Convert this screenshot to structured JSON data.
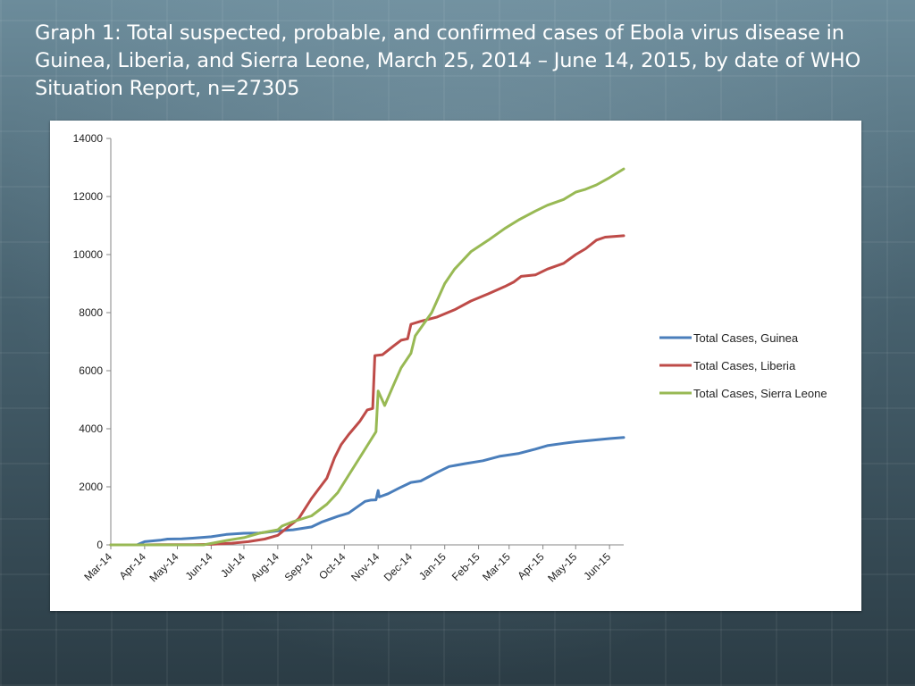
{
  "slide": {
    "title": "Graph 1: Total suspected, probable, and confirmed cases of Ebola virus disease in Guinea, Liberia, and Sierra Leone, March 25, 2014 – June 14, 2015, by date of WHO Situation Report, n=27305"
  },
  "chart_data": {
    "type": "line",
    "title": "Graph 1: Total suspected, probable, and confirmed cases of Ebola virus disease in Guinea, Liberia, and Sierra Leone, March 25, 2014 – June 14, 2015, by date of WHO Situation Report, n=27305",
    "xlabel": "",
    "ylabel": "",
    "x_axis": {
      "type": "date",
      "range": [
        "2014-03-01",
        "2015-06-14"
      ],
      "tick_labels": [
        "Mar-14",
        "Apr-14",
        "May-14",
        "Jun-14",
        "Jul-14",
        "Aug-14",
        "Sep-14",
        "Oct-14",
        "Nov-14",
        "Dec-14",
        "Jan-15",
        "Feb-15",
        "Mar-15",
        "Apr-15",
        "May-15",
        "Jun-15"
      ],
      "tick_dates": [
        "2014-03-01",
        "2014-04-01",
        "2014-05-01",
        "2014-06-01",
        "2014-07-01",
        "2014-08-01",
        "2014-09-01",
        "2014-10-01",
        "2014-11-01",
        "2014-12-01",
        "2015-01-01",
        "2015-02-01",
        "2015-03-01",
        "2015-04-01",
        "2015-05-01",
        "2015-06-01"
      ]
    },
    "y_axis": {
      "range": [
        0,
        14000
      ],
      "ticks": [
        0,
        2000,
        4000,
        6000,
        8000,
        10000,
        12000,
        14000
      ]
    },
    "grid": false,
    "legend_position": "right",
    "series": [
      {
        "name": "Total Cases, Guinea",
        "color": "#4a7ebb",
        "points": [
          [
            "2014-03-01",
            0
          ],
          [
            "2014-03-25",
            0
          ],
          [
            "2014-04-01",
            110
          ],
          [
            "2014-04-15",
            160
          ],
          [
            "2014-04-22",
            200
          ],
          [
            "2014-05-05",
            210
          ],
          [
            "2014-05-15",
            230
          ],
          [
            "2014-06-01",
            280
          ],
          [
            "2014-06-15",
            360
          ],
          [
            "2014-07-01",
            400
          ],
          [
            "2014-07-15",
            410
          ],
          [
            "2014-08-01",
            480
          ],
          [
            "2014-08-15",
            520
          ],
          [
            "2014-09-01",
            620
          ],
          [
            "2014-09-10",
            780
          ],
          [
            "2014-09-25",
            980
          ],
          [
            "2014-10-05",
            1100
          ],
          [
            "2014-10-20",
            1500
          ],
          [
            "2014-10-25",
            1540
          ],
          [
            "2014-10-30",
            1550
          ],
          [
            "2014-11-01",
            1870
          ],
          [
            "2014-11-02",
            1650
          ],
          [
            "2014-11-10",
            1760
          ],
          [
            "2014-11-20",
            1950
          ],
          [
            "2014-12-01",
            2150
          ],
          [
            "2014-12-10",
            2200
          ],
          [
            "2014-12-25",
            2500
          ],
          [
            "2015-01-05",
            2700
          ],
          [
            "2015-01-20",
            2800
          ],
          [
            "2015-02-05",
            2900
          ],
          [
            "2015-02-20",
            3050
          ],
          [
            "2015-03-10",
            3150
          ],
          [
            "2015-03-25",
            3300
          ],
          [
            "2015-04-05",
            3420
          ],
          [
            "2015-04-20",
            3500
          ],
          [
            "2015-05-01",
            3550
          ],
          [
            "2015-05-15",
            3600
          ],
          [
            "2015-06-01",
            3660
          ],
          [
            "2015-06-14",
            3700
          ]
        ]
      },
      {
        "name": "Total Cases, Liberia",
        "color": "#be4b48",
        "points": [
          [
            "2014-03-01",
            0
          ],
          [
            "2014-03-25",
            0
          ],
          [
            "2014-04-15",
            10
          ],
          [
            "2014-05-15",
            10
          ],
          [
            "2014-06-01",
            20
          ],
          [
            "2014-06-20",
            60
          ],
          [
            "2014-07-05",
            110
          ],
          [
            "2014-07-20",
            200
          ],
          [
            "2014-08-01",
            330
          ],
          [
            "2014-08-10",
            600
          ],
          [
            "2014-08-20",
            900
          ],
          [
            "2014-09-01",
            1600
          ],
          [
            "2014-09-10",
            2050
          ],
          [
            "2014-09-15",
            2300
          ],
          [
            "2014-09-22",
            3000
          ],
          [
            "2014-09-28",
            3450
          ],
          [
            "2014-10-05",
            3800
          ],
          [
            "2014-10-15",
            4250
          ],
          [
            "2014-10-22",
            4650
          ],
          [
            "2014-10-27",
            4700
          ],
          [
            "2014-10-29",
            6520
          ],
          [
            "2014-11-05",
            6550
          ],
          [
            "2014-11-15",
            6850
          ],
          [
            "2014-11-22",
            7050
          ],
          [
            "2014-11-28",
            7100
          ],
          [
            "2014-12-01",
            7600
          ],
          [
            "2014-12-10",
            7700
          ],
          [
            "2014-12-25",
            7850
          ],
          [
            "2015-01-10",
            8100
          ],
          [
            "2015-01-25",
            8400
          ],
          [
            "2015-02-10",
            8650
          ],
          [
            "2015-02-25",
            8900
          ],
          [
            "2015-03-05",
            9050
          ],
          [
            "2015-03-12",
            9250
          ],
          [
            "2015-03-25",
            9300
          ],
          [
            "2015-04-05",
            9500
          ],
          [
            "2015-04-20",
            9700
          ],
          [
            "2015-05-01",
            10000
          ],
          [
            "2015-05-10",
            10200
          ],
          [
            "2015-05-20",
            10500
          ],
          [
            "2015-05-28",
            10600
          ],
          [
            "2015-06-14",
            10650
          ]
        ]
      },
      {
        "name": "Total Cases, Sierra Leone",
        "color": "#98b954",
        "points": [
          [
            "2014-03-01",
            0
          ],
          [
            "2014-05-25",
            0
          ],
          [
            "2014-06-01",
            50
          ],
          [
            "2014-06-15",
            150
          ],
          [
            "2014-07-01",
            250
          ],
          [
            "2014-07-15",
            400
          ],
          [
            "2014-08-01",
            520
          ],
          [
            "2014-08-05",
            650
          ],
          [
            "2014-08-15",
            800
          ],
          [
            "2014-09-01",
            1000
          ],
          [
            "2014-09-15",
            1400
          ],
          [
            "2014-09-25",
            1800
          ],
          [
            "2014-10-05",
            2400
          ],
          [
            "2014-10-15",
            3000
          ],
          [
            "2014-10-25",
            3600
          ],
          [
            "2014-10-30",
            3900
          ],
          [
            "2014-11-01",
            5300
          ],
          [
            "2014-11-07",
            4800
          ],
          [
            "2014-11-15",
            5500
          ],
          [
            "2014-11-22",
            6100
          ],
          [
            "2014-12-01",
            6600
          ],
          [
            "2014-12-05",
            7200
          ],
          [
            "2014-12-20",
            8000
          ],
          [
            "2015-01-01",
            9000
          ],
          [
            "2015-01-10",
            9500
          ],
          [
            "2015-01-25",
            10100
          ],
          [
            "2015-02-10",
            10500
          ],
          [
            "2015-02-25",
            10900
          ],
          [
            "2015-03-10",
            11200
          ],
          [
            "2015-03-25",
            11500
          ],
          [
            "2015-04-05",
            11700
          ],
          [
            "2015-04-20",
            11900
          ],
          [
            "2015-05-01",
            12150
          ],
          [
            "2015-05-10",
            12250
          ],
          [
            "2015-05-20",
            12400
          ],
          [
            "2015-06-01",
            12650
          ],
          [
            "2015-06-14",
            12950
          ]
        ]
      }
    ]
  }
}
